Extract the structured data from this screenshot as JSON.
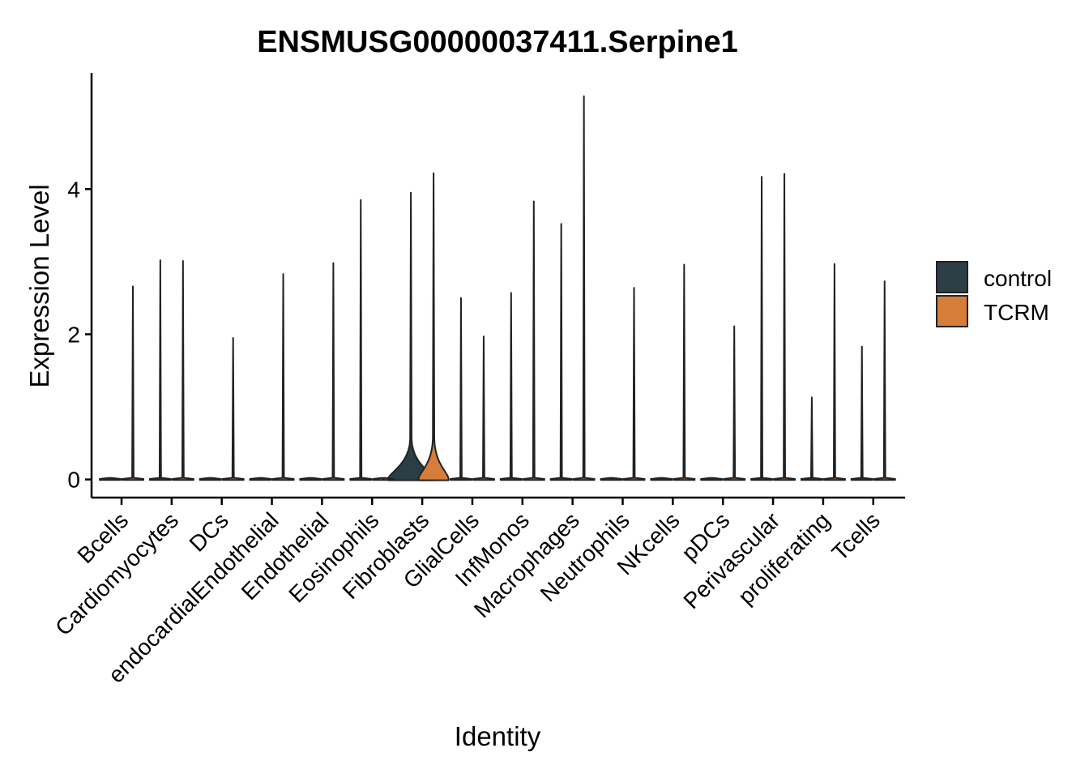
{
  "chart_data": {
    "type": "violin",
    "title": "ENSMUSG00000037411.Serpine1",
    "xlabel": "Identity",
    "ylabel": "Expression Level",
    "ylim": [
      -0.25,
      5.6
    ],
    "yticks": [
      0,
      2,
      4
    ],
    "ytick_labels": [
      "0",
      "2",
      "4"
    ],
    "categories": [
      "Bcells",
      "Cardiomyocytes",
      "DCs",
      "endocardialEndothelial",
      "Endothelial",
      "Eosinophils",
      "Fibroblasts",
      "GlialCells",
      "InfMonos",
      "Macrophages",
      "Neutrophils",
      "NKcells",
      "pDCs",
      "Perivascular",
      "proliferating",
      "Tcells"
    ],
    "legend_position": "right",
    "grid": false,
    "series": [
      {
        "name": "control",
        "color": "#2c3e45",
        "max": [
          0,
          3.02,
          0,
          0,
          0,
          3.85,
          3.95,
          2.5,
          2.57,
          3.52,
          0,
          0,
          0,
          4.17,
          1.13,
          1.83
        ],
        "peak_density": [
          0.02,
          0.02,
          0.02,
          0.02,
          0.02,
          0.02,
          0.45,
          0.02,
          0.02,
          0.02,
          0.02,
          0.02,
          0.02,
          0.02,
          0.02,
          0.02
        ]
      },
      {
        "name": "TCRM",
        "color": "#d67d3a",
        "max": [
          2.66,
          3.01,
          1.95,
          2.83,
          2.98,
          0,
          4.22,
          1.97,
          3.83,
          5.28,
          2.64,
          2.96,
          2.11,
          4.21,
          2.97,
          2.73
        ],
        "peak_density": [
          0.02,
          0.02,
          0.02,
          0.02,
          0.02,
          0.02,
          0.3,
          0.02,
          0.02,
          0.02,
          0.02,
          0.02,
          0.02,
          0.02,
          0.02,
          0.02
        ]
      }
    ]
  }
}
